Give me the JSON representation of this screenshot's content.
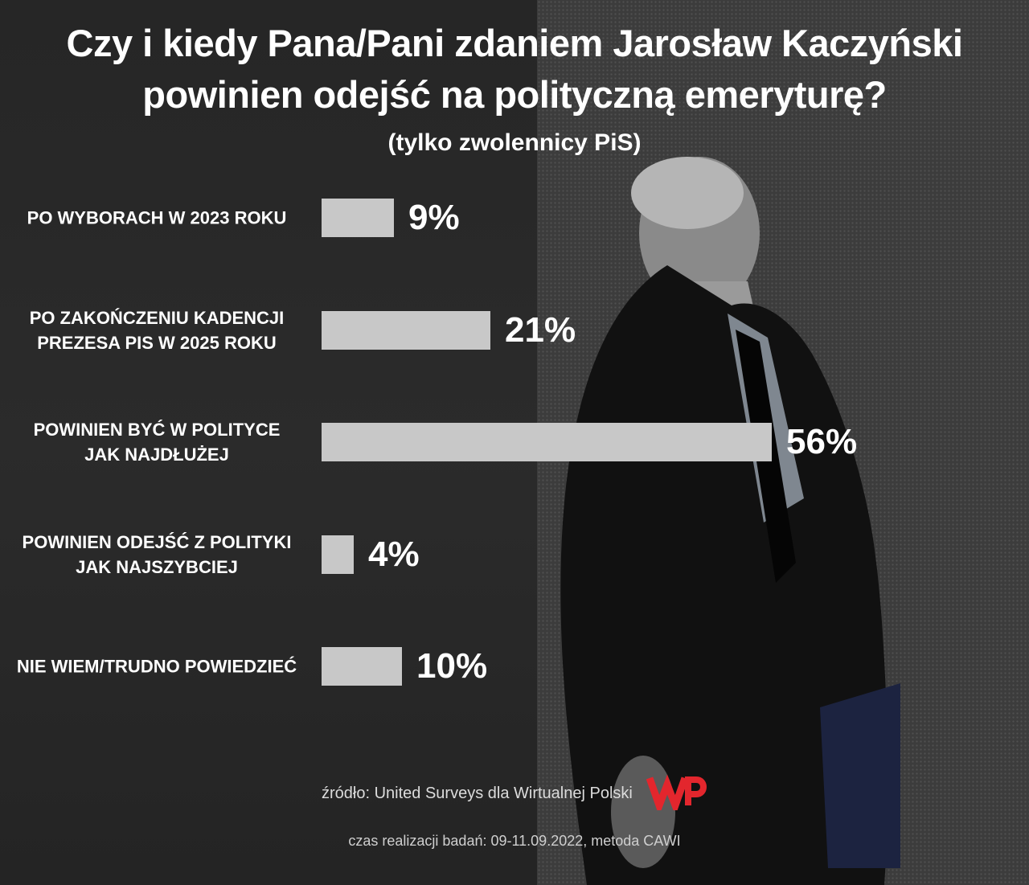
{
  "title_line1": "Czy i kiedy Pana/Pani zdaniem Jarosław Kaczyński",
  "title_line2": "powinien odejść na polityczną emeryturę?",
  "subtitle": "(tylko zwolennicy PiS)",
  "chart_data": {
    "type": "bar",
    "orientation": "horizontal",
    "categories": [
      "PO WYBORACH W 2023 ROKU",
      "PO ZAKOŃCZENIU KADENCJI\nPREZESA PIS W 2025 ROKU",
      "POWINIEN BYĆ W POLITYCE\nJAK NAJDŁUŻEJ",
      "POWINIEN ODEJŚĆ Z POLITYKI\nJAK NAJSZYBCIEJ",
      "NIE WIEM/TRUDNO POWIEDZIEĆ"
    ],
    "values": [
      9,
      21,
      56,
      4,
      10
    ],
    "value_labels": [
      "9%",
      "21%",
      "56%",
      "4%",
      "10%"
    ],
    "unit": "%",
    "bar_color": "#c8c8c8",
    "grid": false,
    "legend": "none"
  },
  "source": "źródło: United Surveys dla Wirtualnej Polski",
  "note": "czas realizacji badań: 09-11.09.2022, metoda CAWI",
  "logo": {
    "name": "wp-logo",
    "color": "#e3262d"
  }
}
